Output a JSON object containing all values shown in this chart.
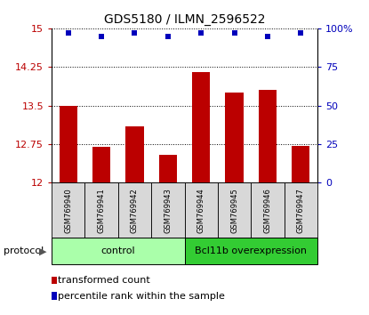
{
  "title": "GDS5180 / ILMN_2596522",
  "samples": [
    "GSM769940",
    "GSM769941",
    "GSM769942",
    "GSM769943",
    "GSM769944",
    "GSM769945",
    "GSM769946",
    "GSM769947"
  ],
  "transformed_counts": [
    13.5,
    12.7,
    13.1,
    12.55,
    14.15,
    13.75,
    13.8,
    12.72
  ],
  "percentile_ranks": [
    97,
    95,
    97,
    95,
    97,
    97,
    95,
    97
  ],
  "ylim_left": [
    12,
    15
  ],
  "ylim_right": [
    0,
    100
  ],
  "yticks_left": [
    12,
    12.75,
    13.5,
    14.25,
    15
  ],
  "yticks_right": [
    0,
    25,
    50,
    75,
    100
  ],
  "bar_color": "#bb0000",
  "dot_color": "#0000bb",
  "bar_width": 0.55,
  "groups": [
    {
      "label": "control",
      "samples": [
        0,
        1,
        2,
        3
      ],
      "color": "#aaffaa"
    },
    {
      "label": "Bcl11b overexpression",
      "samples": [
        4,
        5,
        6,
        7
      ],
      "color": "#33cc33"
    }
  ],
  "protocol_label": "protocol",
  "legend_items": [
    {
      "label": "transformed count",
      "color": "#bb0000"
    },
    {
      "label": "percentile rank within the sample",
      "color": "#0000bb"
    }
  ],
  "grid_linestyle": ":",
  "sample_bg_color": "#d8d8d8",
  "title_fontsize": 10,
  "tick_fontsize": 8,
  "sample_fontsize": 6,
  "legend_fontsize": 8,
  "group_fontsize": 8
}
